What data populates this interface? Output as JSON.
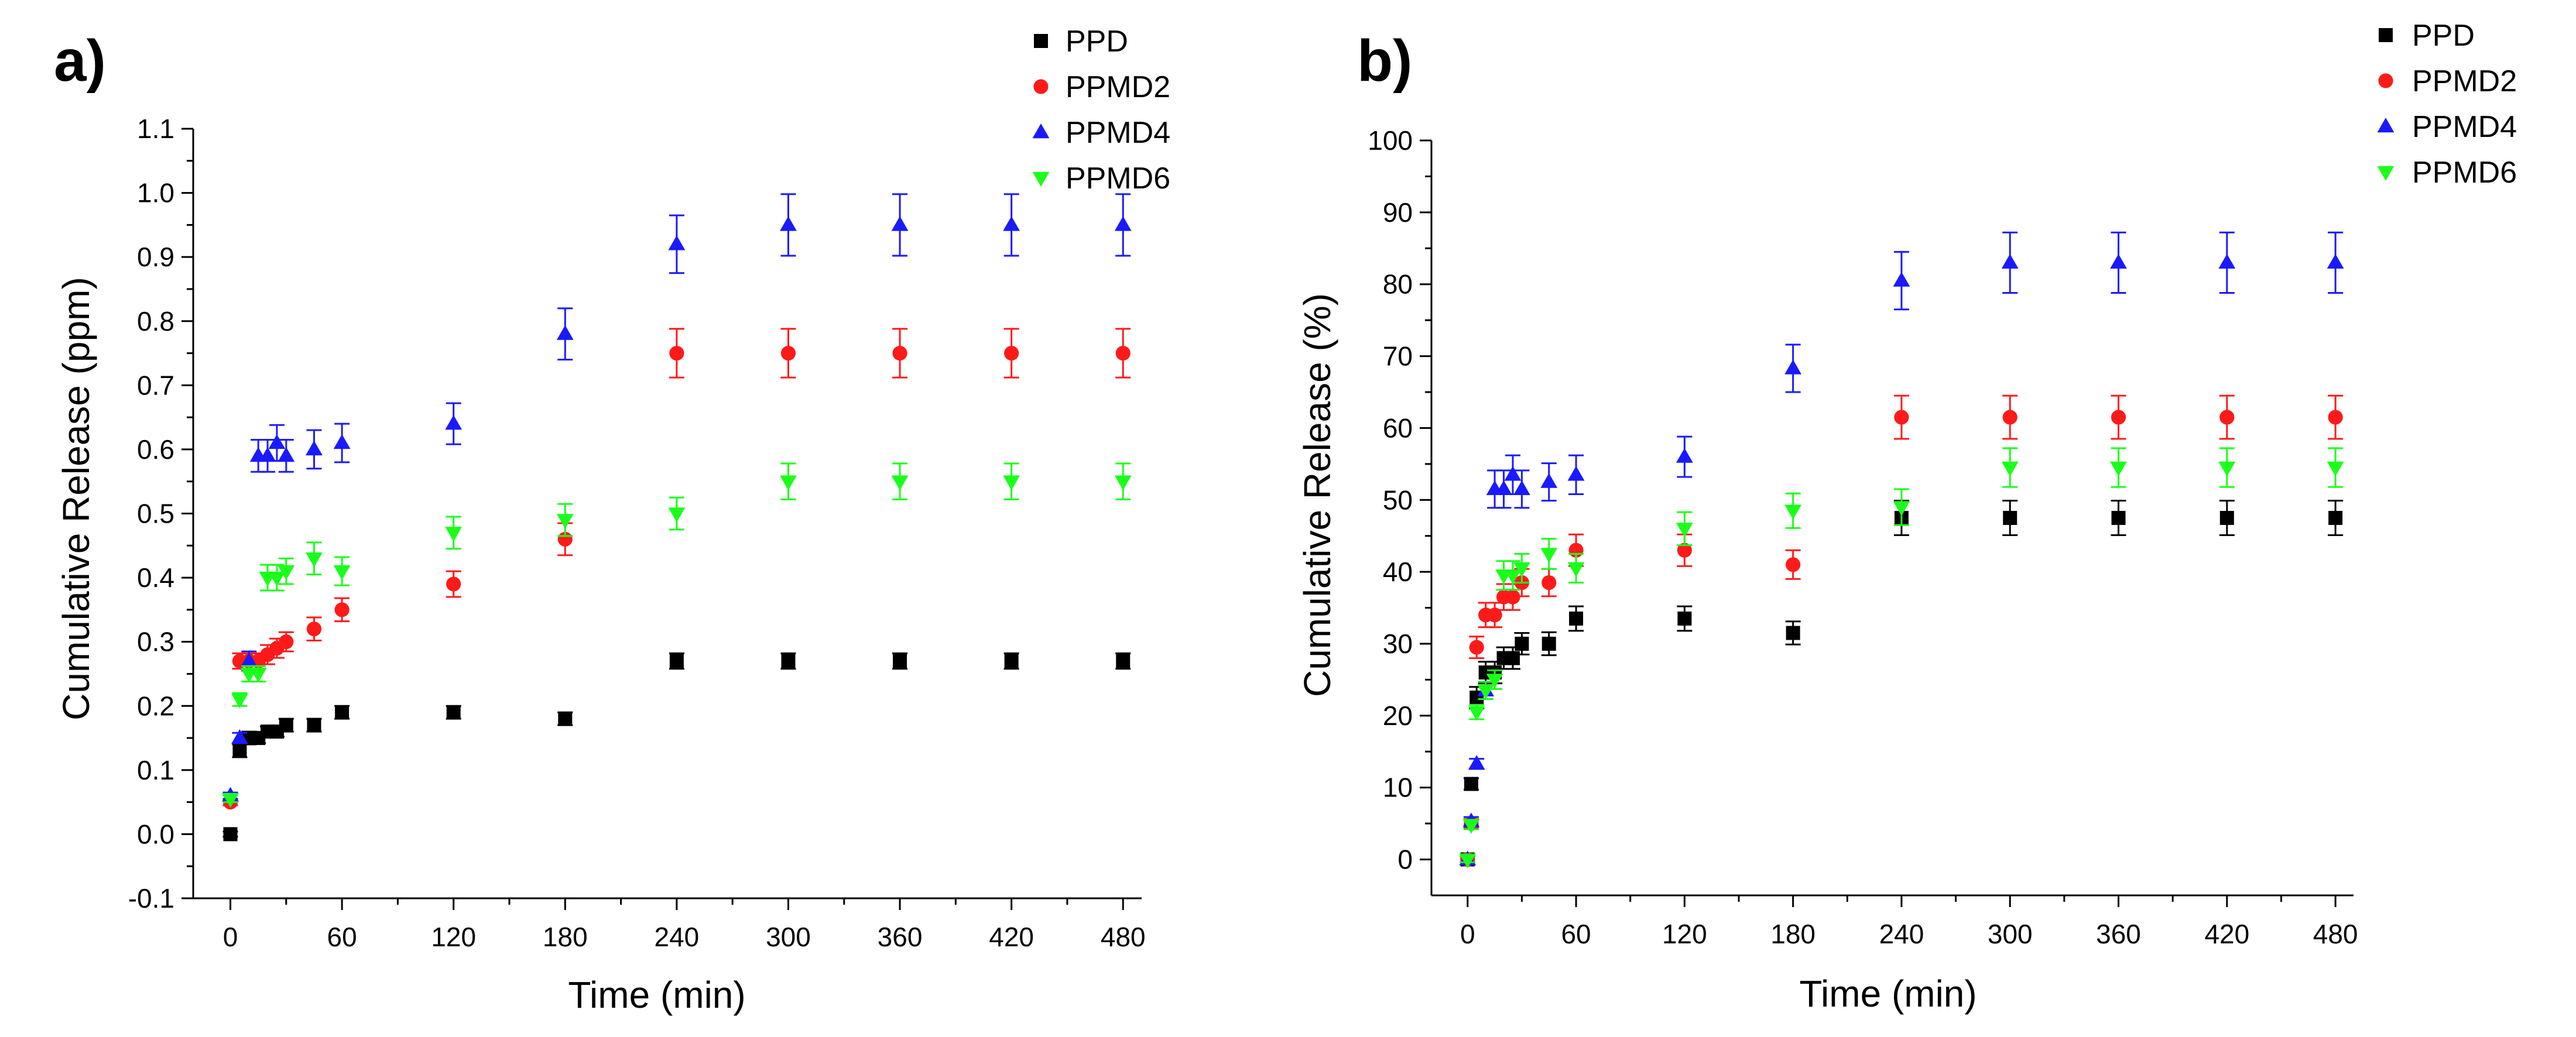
{
  "chart_data": [
    {
      "panel_label": "a)",
      "type": "scatter",
      "title": "",
      "xlabel": "Time (min)",
      "ylabel": "Cumulative Release (ppm)",
      "xlim": [
        -20,
        490
      ],
      "ylim": [
        -0.1,
        1.1
      ],
      "xticks": [
        0,
        60,
        120,
        180,
        240,
        300,
        360,
        420,
        480
      ],
      "yticks": [
        -0.1,
        0.0,
        0.1,
        0.2,
        0.3,
        0.4,
        0.5,
        0.6,
        0.7,
        0.8,
        0.9,
        1.0,
        1.1
      ],
      "ytick_labels": [
        "-0.1",
        "0.0",
        "0.1",
        "0.2",
        "0.3",
        "0.4",
        "0.5",
        "0.6",
        "0.7",
        "0.8",
        "0.9",
        "1.0",
        "1.1"
      ],
      "grid": false,
      "legend_position": "top-right",
      "series": [
        {
          "name": "PPD",
          "color": "#000000",
          "marker": "square",
          "x": [
            0,
            5,
            10,
            15,
            20,
            25,
            30,
            45,
            60,
            120,
            180,
            240,
            300,
            360,
            420,
            480
          ],
          "y": [
            0.0,
            0.13,
            0.15,
            0.15,
            0.16,
            0.16,
            0.17,
            0.17,
            0.19,
            0.19,
            0.18,
            0.27,
            0.27,
            0.27,
            0.27,
            0.27
          ],
          "err": [
            0.004,
            0.01,
            0.01,
            0.008,
            0.008,
            0.008,
            0.01,
            0.01,
            0.01,
            0.01,
            0.01,
            0.012,
            0.012,
            0.012,
            0.012,
            0.012
          ]
        },
        {
          "name": "PPMD2",
          "color": "#ff1a1a",
          "marker": "circle",
          "x": [
            0,
            5,
            10,
            15,
            20,
            25,
            30,
            45,
            60,
            120,
            180,
            240,
            300,
            360,
            420,
            480
          ],
          "y": [
            0.05,
            0.27,
            0.27,
            0.27,
            0.28,
            0.29,
            0.3,
            0.32,
            0.35,
            0.39,
            0.46,
            0.75,
            0.75,
            0.75,
            0.75,
            0.75
          ],
          "err": [
            0.005,
            0.012,
            0.012,
            0.012,
            0.015,
            0.015,
            0.015,
            0.018,
            0.018,
            0.02,
            0.025,
            0.038,
            0.038,
            0.038,
            0.038,
            0.038
          ]
        },
        {
          "name": "PPMD4",
          "color": "#1a1aff",
          "marker": "triangle-up",
          "x": [
            0,
            5,
            10,
            15,
            20,
            25,
            30,
            45,
            60,
            120,
            180,
            240,
            300,
            360,
            420,
            480
          ],
          "y": [
            0.06,
            0.15,
            0.27,
            0.59,
            0.59,
            0.61,
            0.59,
            0.6,
            0.61,
            0.64,
            0.78,
            0.92,
            0.95,
            0.95,
            0.95,
            0.95
          ],
          "err": [
            0.005,
            0.008,
            0.015,
            0.025,
            0.025,
            0.028,
            0.025,
            0.03,
            0.03,
            0.032,
            0.04,
            0.045,
            0.048,
            0.048,
            0.048,
            0.048
          ]
        },
        {
          "name": "PPMD6",
          "color": "#1aff1a",
          "marker": "triangle-down",
          "x": [
            0,
            5,
            10,
            15,
            20,
            25,
            30,
            45,
            60,
            120,
            180,
            240,
            300,
            360,
            420,
            480
          ],
          "y": [
            0.055,
            0.21,
            0.25,
            0.25,
            0.4,
            0.4,
            0.41,
            0.43,
            0.41,
            0.47,
            0.49,
            0.5,
            0.55,
            0.55,
            0.55,
            0.55
          ],
          "err": [
            0.005,
            0.01,
            0.012,
            0.012,
            0.02,
            0.02,
            0.02,
            0.025,
            0.022,
            0.025,
            0.025,
            0.025,
            0.028,
            0.028,
            0.028,
            0.028
          ]
        }
      ]
    },
    {
      "panel_label": "b)",
      "type": "scatter",
      "title": "",
      "xlabel": "Time (min)",
      "ylabel": "Cumulative Release (%)",
      "xlim": [
        -20,
        490
      ],
      "ylim": [
        -5,
        100
      ],
      "xticks": [
        0,
        60,
        120,
        180,
        240,
        300,
        360,
        420,
        480
      ],
      "yticks": [
        0,
        10,
        20,
        30,
        40,
        50,
        60,
        70,
        80,
        90,
        100
      ],
      "ytick_labels": [
        "0",
        "10",
        "20",
        "30",
        "40",
        "50",
        "60",
        "70",
        "80",
        "90",
        "100"
      ],
      "grid": false,
      "legend_position": "top-right",
      "series": [
        {
          "name": "PPD",
          "color": "#000000",
          "marker": "square",
          "x": [
            0,
            2,
            5,
            10,
            15,
            20,
            25,
            30,
            45,
            60,
            120,
            180,
            240,
            300,
            360,
            420,
            480
          ],
          "y": [
            0,
            10.5,
            22.5,
            26,
            26,
            28,
            28,
            30,
            30,
            33.5,
            33.5,
            31.5,
            47.5,
            47.5,
            47.5,
            47.5,
            47.5
          ],
          "err": [
            0.4,
            0.8,
            1.5,
            1.5,
            1.5,
            1.5,
            1.5,
            1.5,
            1.6,
            1.7,
            1.7,
            1.6,
            2.4,
            2.4,
            2.4,
            2.4,
            2.4
          ]
        },
        {
          "name": "PPMD2",
          "color": "#ff1a1a",
          "marker": "circle",
          "x": [
            0,
            2,
            5,
            10,
            15,
            20,
            25,
            30,
            45,
            60,
            120,
            180,
            240,
            300,
            360,
            420,
            480
          ],
          "y": [
            0,
            5,
            29.5,
            34,
            34,
            36.5,
            36.5,
            38.5,
            38.5,
            43,
            43,
            41,
            61.5,
            61.5,
            61.5,
            61.5,
            61.5
          ],
          "err": [
            0.4,
            0.6,
            1.5,
            1.7,
            1.7,
            1.8,
            1.8,
            1.9,
            1.9,
            2.2,
            2.2,
            2.0,
            3.0,
            3.0,
            3.0,
            3.0,
            3.0
          ]
        },
        {
          "name": "PPMD4",
          "color": "#1a1aff",
          "marker": "triangle-up",
          "x": [
            0,
            2,
            5,
            10,
            15,
            20,
            25,
            30,
            45,
            60,
            120,
            180,
            240,
            300,
            360,
            420,
            480
          ],
          "y": [
            0,
            5.3,
            13.3,
            23.5,
            51.5,
            51.5,
            53.5,
            51.5,
            52.5,
            53.5,
            56,
            68.3,
            80.5,
            83,
            83,
            83,
            83
          ],
          "err": [
            0.4,
            0.6,
            0.7,
            1.2,
            2.6,
            2.6,
            2.7,
            2.6,
            2.6,
            2.7,
            2.8,
            3.3,
            4.0,
            4.2,
            4.2,
            4.2,
            4.2
          ]
        },
        {
          "name": "PPMD6",
          "color": "#1aff1a",
          "marker": "triangle-down",
          "x": [
            0,
            2,
            5,
            10,
            15,
            20,
            25,
            30,
            45,
            60,
            120,
            180,
            240,
            300,
            360,
            420,
            480
          ],
          "y": [
            0,
            4.8,
            20.5,
            23.5,
            25,
            39.5,
            39.5,
            40.5,
            42.5,
            40.5,
            46,
            48.5,
            49,
            54.5,
            54.5,
            54.5,
            54.5
          ],
          "err": [
            0.4,
            0.6,
            1.0,
            1.2,
            1.3,
            2.0,
            2.0,
            2.0,
            2.1,
            2.0,
            2.3,
            2.4,
            2.5,
            2.7,
            2.7,
            2.7,
            2.7
          ]
        }
      ]
    }
  ]
}
